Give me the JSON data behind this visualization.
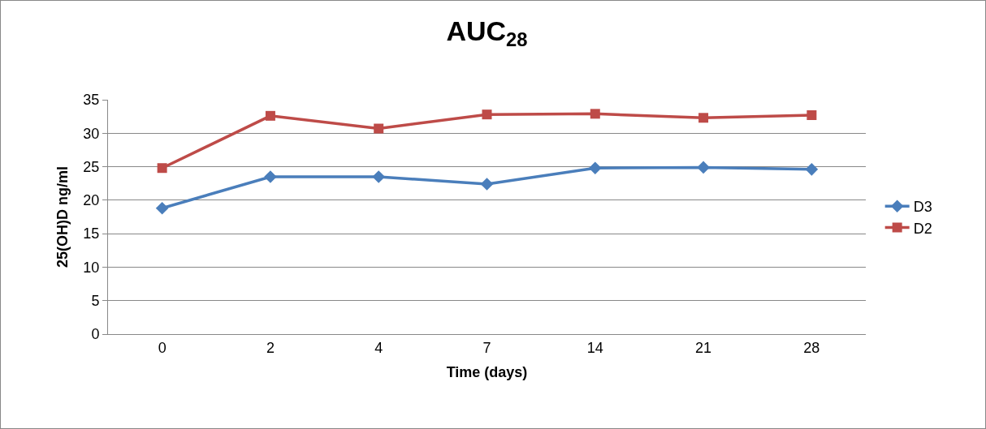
{
  "chart_data": {
    "type": "line",
    "title": "AUC$_{28}$",
    "xlabel": "Time (days)",
    "ylabel": "25(OH)D ng/ml",
    "categories": [
      "0",
      "2",
      "4",
      "7",
      "14",
      "21",
      "28"
    ],
    "series": [
      {
        "name": "D3",
        "color": "#4a7ebb",
        "marker": "diamond",
        "values": [
          18.8,
          23.5,
          23.5,
          22.4,
          24.8,
          24.9,
          24.6
        ]
      },
      {
        "name": "D2",
        "color": "#be4b48",
        "marker": "square",
        "values": [
          24.8,
          32.6,
          30.7,
          32.8,
          32.9,
          32.3,
          32.7
        ]
      }
    ],
    "ylim": [
      0,
      35
    ],
    "yticks": [
      0,
      5,
      10,
      15,
      20,
      25,
      30,
      35
    ],
    "grid": "y",
    "legend": "right",
    "line_style": "solid"
  }
}
